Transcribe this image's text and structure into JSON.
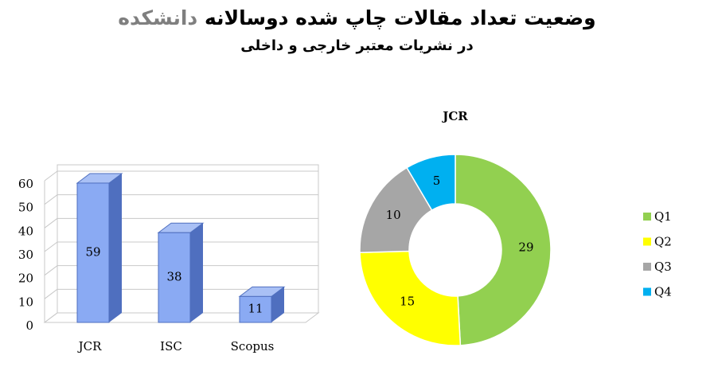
{
  "header": {
    "title": "وضعیت تعداد مقالات چاپ شده دوسالانه",
    "title_highlight": "دانشکده",
    "subtitle": "در نشریات معتبر خارجی و داخلی"
  },
  "chart_data": [
    {
      "type": "bar",
      "categories": [
        "JCR",
        "ISC",
        "Scopus"
      ],
      "values": [
        59,
        38,
        11
      ],
      "color": "#8aaaf3",
      "ylim": [
        0,
        60
      ],
      "yticks": [
        0,
        10,
        20,
        30,
        40,
        50,
        60
      ],
      "grid": true
    },
    {
      "type": "pie",
      "title": "JCR",
      "categories": [
        "Q1",
        "Q2",
        "Q3",
        "Q4"
      ],
      "values": [
        29,
        15,
        10,
        5
      ],
      "colors": [
        "#92d050",
        "#ffff00",
        "#a6a6a6",
        "#00b0f0"
      ],
      "legend": "right"
    }
  ]
}
